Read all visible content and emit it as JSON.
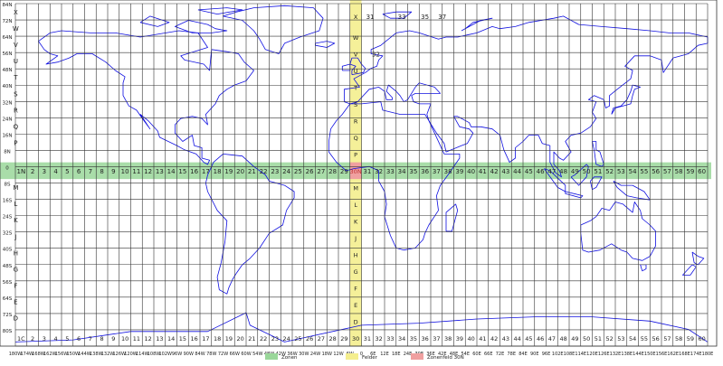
{
  "map": {
    "colors": {
      "grid": "#333333",
      "coast": "#1010e0",
      "zone_band": "#9ad79a",
      "field_band": "#f4ee8e",
      "highlight": "#f0a0a0"
    },
    "lat_labels": [
      "84N",
      "72N",
      "64N",
      "56N",
      "48N",
      "40N",
      "32N",
      "24N",
      "16N",
      "8N",
      "0",
      "8S",
      "16S",
      "24S",
      "32S",
      "40S",
      "48S",
      "56S",
      "64S",
      "72S",
      "80S"
    ],
    "band_letters": [
      "C",
      "D",
      "E",
      "F",
      "G",
      "H",
      "J",
      "K",
      "L",
      "M",
      "N",
      "P",
      "Q",
      "R",
      "S",
      "T",
      "U",
      "V",
      "W",
      "X"
    ],
    "zone_numbers": [
      "1",
      "2",
      "3",
      "4",
      "5",
      "6",
      "7",
      "8",
      "9",
      "10",
      "11",
      "12",
      "13",
      "14",
      "15",
      "16",
      "17",
      "18",
      "19",
      "20",
      "21",
      "22",
      "23",
      "24",
      "25",
      "26",
      "27",
      "28",
      "29",
      "30",
      "31",
      "32",
      "33",
      "34",
      "35",
      "36",
      "37",
      "38",
      "39",
      "40",
      "41",
      "42",
      "43",
      "44",
      "45",
      "46",
      "47",
      "48",
      "49",
      "50",
      "51",
      "52",
      "53",
      "54",
      "55",
      "56",
      "57",
      "58",
      "59",
      "60"
    ],
    "row_1n_label": "1N",
    "row_1c_label": "1C",
    "highlight_label": "30N",
    "special_zones_top": [
      "31",
      "33",
      "35",
      "37"
    ],
    "special_zone_32v": "32",
    "lon_labels": [
      "180W",
      "174W",
      "168W",
      "162W",
      "156W",
      "150W",
      "144W",
      "138W",
      "132W",
      "126W",
      "120W",
      "114W",
      "108W",
      "102W",
      "96W",
      "90W",
      "84W",
      "78W",
      "72W",
      "66W",
      "60W",
      "54W",
      "48W",
      "42W",
      "36W",
      "30W",
      "24W",
      "18W",
      "12W",
      "6W",
      "0",
      "6E",
      "12E",
      "18E",
      "24E",
      "30E",
      "36E",
      "42E",
      "48E",
      "54E",
      "60E",
      "66E",
      "72E",
      "78E",
      "84E",
      "90E",
      "96E",
      "102E",
      "108E",
      "114E",
      "120E",
      "126E",
      "132E",
      "138E",
      "144E",
      "150E",
      "156E",
      "162E",
      "168E",
      "174E",
      "180E"
    ]
  },
  "legend": {
    "zones": "Zonen",
    "fields": "Felder",
    "zone_field": "Zonenfeld 30N"
  }
}
